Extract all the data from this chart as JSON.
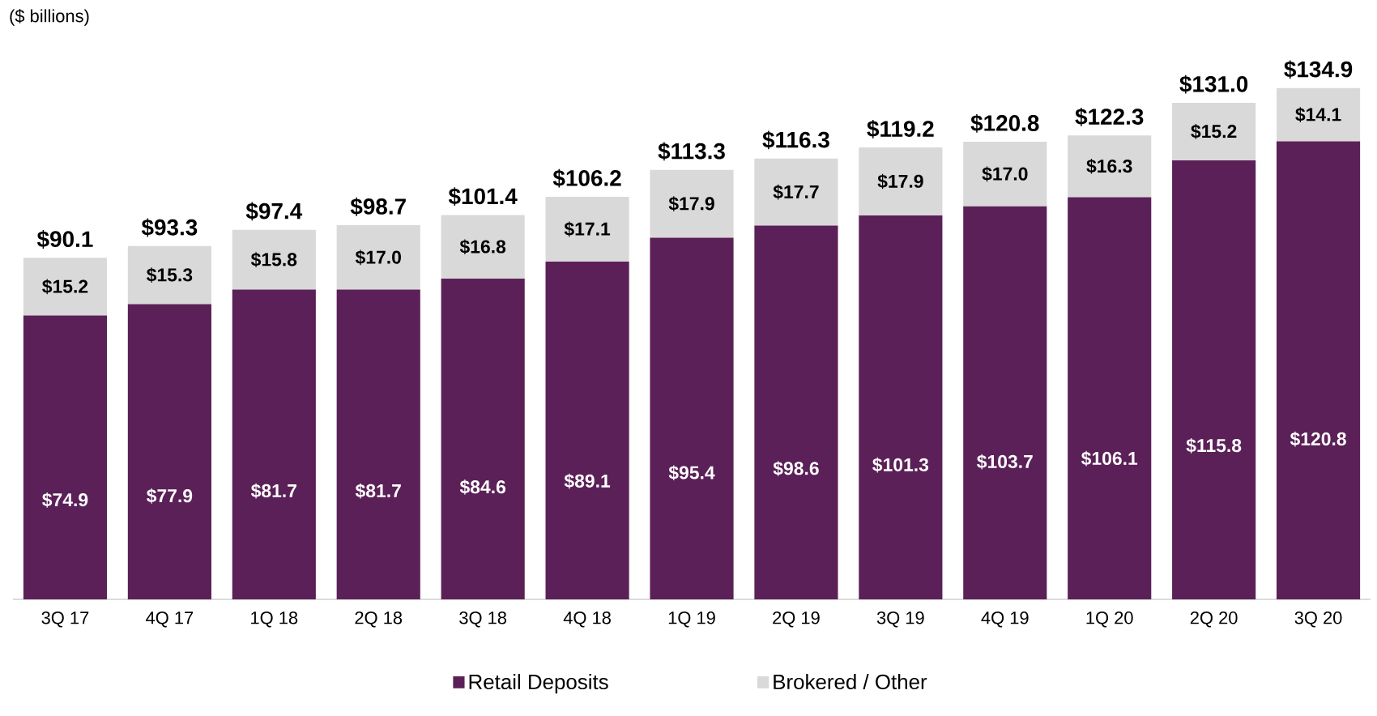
{
  "chart_data": {
    "type": "bar",
    "stacked": true,
    "legend": "bottom",
    "annotations": [
      "($ billions)"
    ],
    "categories": [
      "3Q 17",
      "4Q 17",
      "1Q 18",
      "2Q 18",
      "3Q 18",
      "4Q 18",
      "1Q 19",
      "2Q 19",
      "3Q 19",
      "4Q 19",
      "1Q 20",
      "2Q 20",
      "3Q 20"
    ],
    "series": [
      {
        "name": "Retail Deposits",
        "color": "#5b2057",
        "values": [
          74.9,
          77.9,
          81.7,
          81.7,
          84.6,
          89.1,
          95.4,
          98.6,
          101.3,
          103.7,
          106.1,
          115.8,
          120.8
        ],
        "value_labels": [
          "$74.9",
          "$77.9",
          "$81.7",
          "$81.7",
          "$84.6",
          "$89.1",
          "$95.4",
          "$98.6",
          "$101.3",
          "$103.7",
          "$106.1",
          "$115.8",
          "$120.8"
        ]
      },
      {
        "name": "Brokered / Other",
        "color": "#d9d9d9",
        "values": [
          15.2,
          15.3,
          15.8,
          17.0,
          16.8,
          17.1,
          17.9,
          17.7,
          17.9,
          17.0,
          16.3,
          15.2,
          14.1
        ],
        "value_labels": [
          "$15.2",
          "$15.3",
          "$15.8",
          "$17.0",
          "$16.8",
          "$17.1",
          "$17.9",
          "$17.7",
          "$17.9",
          "$17.0",
          "$16.3",
          "$15.2",
          "$14.1"
        ]
      }
    ],
    "totals": [
      "$90.1",
      "$93.3",
      "$97.4",
      "$98.7",
      "$101.4",
      "$106.2",
      "$113.3",
      "$116.3",
      "$119.2",
      "$120.8",
      "$122.3",
      "$131.0",
      "$134.9"
    ]
  }
}
